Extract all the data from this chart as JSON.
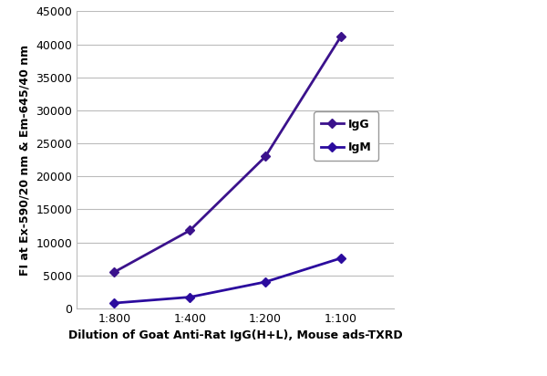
{
  "x_labels": [
    "1:800",
    "1:400",
    "1:200",
    "1:100"
  ],
  "x_values": [
    1,
    2,
    3,
    4
  ],
  "IgG_values": [
    5500,
    11800,
    23000,
    41200
  ],
  "IgM_values": [
    800,
    1700,
    4000,
    7600
  ],
  "IgG_color": "#3B128C",
  "IgM_color": "#2B0B9E",
  "marker_style": "D",
  "marker_size": 5,
  "line_width": 2.0,
  "ylabel": "FI at Ex-590/20 nm & Em-645/40 nm",
  "xlabel": "Dilution of Goat Anti-Rat IgG(H+L), Mouse ads-TXRD",
  "ylim": [
    0,
    45000
  ],
  "yticks": [
    0,
    5000,
    10000,
    15000,
    20000,
    25000,
    30000,
    35000,
    40000,
    45000
  ],
  "legend_labels": [
    "IgG",
    "IgM"
  ],
  "background_color": "#ffffff",
  "grid_color": "#bbbbbb",
  "axis_fontsize": 9,
  "tick_fontsize": 9,
  "legend_fontsize": 9
}
